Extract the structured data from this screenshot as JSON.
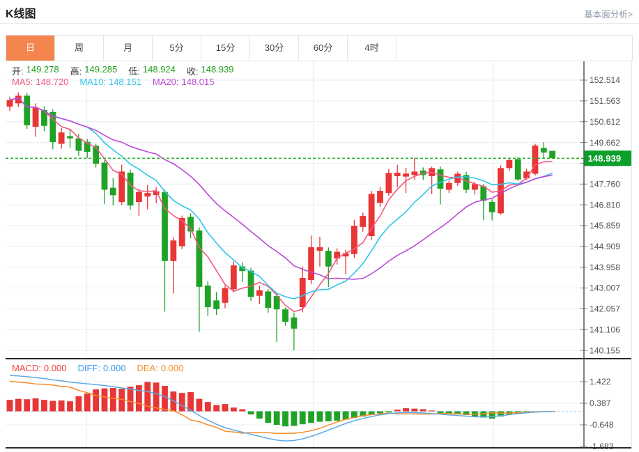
{
  "header": {
    "title": "K线图",
    "link_label": "基本面分析>"
  },
  "tabs": {
    "items": [
      "日",
      "周",
      "月",
      "5分",
      "15分",
      "30分",
      "60分",
      "4时"
    ],
    "selected_index": 0
  },
  "price_legend": {
    "ohlc": [
      {
        "label": "开:",
        "value": "149.278"
      },
      {
        "label": "高:",
        "value": "149.285"
      },
      {
        "label": "低:",
        "value": "148.924"
      },
      {
        "label": "收:",
        "value": "148.939"
      }
    ],
    "ma": [
      {
        "label": "MA5:",
        "value": "148.720"
      },
      {
        "label": "MA10:",
        "value": "148.151"
      },
      {
        "label": "MA20:",
        "value": "148.015"
      }
    ]
  },
  "macd_legend": [
    {
      "label": "MACD:",
      "value": "0.000"
    },
    {
      "label": "DIFF:",
      "value": "0.000"
    },
    {
      "label": "DEA:",
      "value": "0.000"
    }
  ],
  "colors": {
    "up": "#e83535",
    "down": "#20a226",
    "ma5": "#f2597f",
    "ma10": "#2fc5e8",
    "ma20": "#bb4ad4",
    "diff_line": "#5ea9e6",
    "dea_line": "#f78c2a",
    "macd_text": "#f04545",
    "diff_text": "#3e97f2",
    "dea_text": "#f78f2d",
    "ohlc_value": "#21a121",
    "tab_accent": "#f5854e",
    "price_badge": "#0aa02a",
    "price_line": "#28b428",
    "grid_h": "#e9eef5",
    "grid_v": "#dde7f0",
    "axis_line": "#555555",
    "axis_text": "#555555",
    "macd_zero_dash": "#aed6f2",
    "separator": "#2a2a2a"
  },
  "chart_data": {
    "type": "candlestick",
    "title": "K线图",
    "panels": [
      {
        "name": "price",
        "legend_current": {
          "open": 149.278,
          "high": 149.285,
          "low": 148.924,
          "close": 148.939
        },
        "ma_periods": [
          5,
          10,
          20
        ],
        "ma_current": {
          "ma5": 148.72,
          "ma10": 148.151,
          "ma20": 148.015
        },
        "current_price": 148.939,
        "y_ticks": [
          152.514,
          151.563,
          150.612,
          149.662,
          148.711,
          147.76,
          146.81,
          145.859,
          144.909,
          143.958,
          143.007,
          142.057,
          141.106,
          140.155
        ],
        "ohlc": [
          [
            151.3,
            151.75,
            151.1,
            151.6
          ],
          [
            151.45,
            151.95,
            151.28,
            151.8
          ],
          [
            151.8,
            151.92,
            150.28,
            150.45
          ],
          [
            150.38,
            151.45,
            149.92,
            151.25
          ],
          [
            151.15,
            151.32,
            150.18,
            150.42
          ],
          [
            151.05,
            151.18,
            149.35,
            149.68
          ],
          [
            149.6,
            150.32,
            149.38,
            150.12
          ],
          [
            149.95,
            150.28,
            149.42,
            149.85
          ],
          [
            149.85,
            150.05,
            149.05,
            149.28
          ],
          [
            149.69,
            149.82,
            148.95,
            149.23
          ],
          [
            149.51,
            149.6,
            148.52,
            148.69
          ],
          [
            148.74,
            148.85,
            146.84,
            147.5
          ],
          [
            147.59,
            148.03,
            146.78,
            147.25
          ],
          [
            146.94,
            148.64,
            146.8,
            148.33
          ],
          [
            148.28,
            148.42,
            146.58,
            146.78
          ],
          [
            146.94,
            147.55,
            146.31,
            147.4
          ],
          [
            147.19,
            147.72,
            146.6,
            147.35
          ],
          [
            147.26,
            147.62,
            146.88,
            147.43
          ],
          [
            147.4,
            147.5,
            141.93,
            144.24
          ],
          [
            144.24,
            145.32,
            142.75,
            145.18
          ],
          [
            144.92,
            146.32,
            144.78,
            146.21
          ],
          [
            146.26,
            146.42,
            145.28,
            145.59
          ],
          [
            145.64,
            145.78,
            141.0,
            143.06
          ],
          [
            143.12,
            143.32,
            141.72,
            142.13
          ],
          [
            142.44,
            142.82,
            141.78,
            142.04
          ],
          [
            142.33,
            143.12,
            142.08,
            143.0
          ],
          [
            142.95,
            144.22,
            142.8,
            144.04
          ],
          [
            143.99,
            144.18,
            143.28,
            143.78
          ],
          [
            143.8,
            143.92,
            142.42,
            142.6
          ],
          [
            142.65,
            143.12,
            142.28,
            142.9
          ],
          [
            142.85,
            142.96,
            141.88,
            142.1
          ],
          [
            142.64,
            142.75,
            140.53,
            142.03
          ],
          [
            142.03,
            142.12,
            141.28,
            141.46
          ],
          [
            141.66,
            141.88,
            140.155,
            141.15
          ],
          [
            142.13,
            143.99,
            141.9,
            143.47
          ],
          [
            143.37,
            145.4,
            143.18,
            144.87
          ],
          [
            144.71,
            145.35,
            143.99,
            144.87
          ],
          [
            144.71,
            144.86,
            143.06,
            143.99
          ],
          [
            144.35,
            144.82,
            144.08,
            144.66
          ],
          [
            144.45,
            144.74,
            143.63,
            144.6
          ],
          [
            144.56,
            146.12,
            144.38,
            145.85
          ],
          [
            145.8,
            146.45,
            145.58,
            146.3
          ],
          [
            145.38,
            147.45,
            145.2,
            147.31
          ],
          [
            146.9,
            147.62,
            146.72,
            147.45
          ],
          [
            147.35,
            148.45,
            147.22,
            148.27
          ],
          [
            148.12,
            148.64,
            147.61,
            148.28
          ],
          [
            148.1,
            148.5,
            147.35,
            148.24
          ],
          [
            148.17,
            148.95,
            147.95,
            148.33
          ],
          [
            148.38,
            148.52,
            147.95,
            148.17
          ],
          [
            148.12,
            148.56,
            147.3,
            148.49
          ],
          [
            148.43,
            148.56,
            146.83,
            147.55
          ],
          [
            147.5,
            147.92,
            147.35,
            147.81
          ],
          [
            147.81,
            148.32,
            147.68,
            148.23
          ],
          [
            148.17,
            148.32,
            147.35,
            147.5
          ],
          [
            147.5,
            147.86,
            147.28,
            147.76
          ],
          [
            147.66,
            147.76,
            146.11,
            146.99
          ],
          [
            146.94,
            147.06,
            146.1,
            146.47
          ],
          [
            146.42,
            148.62,
            146.35,
            148.49
          ],
          [
            148.49,
            148.96,
            148.35,
            148.86
          ],
          [
            148.9,
            148.98,
            147.9,
            147.97
          ],
          [
            148.02,
            148.46,
            147.94,
            148.33
          ],
          [
            148.23,
            149.6,
            148.15,
            149.52
          ],
          [
            149.41,
            149.67,
            148.95,
            149.2
          ],
          [
            149.278,
            149.285,
            148.924,
            148.939
          ]
        ]
      },
      {
        "name": "macd",
        "last_values": {
          "macd": 0.0,
          "diff": 0.0,
          "dea": 0.0
        },
        "y_ticks": [
          1.422,
          0.387,
          -0.648,
          -1.683
        ],
        "diff": [
          1.72,
          1.7,
          1.66,
          1.62,
          1.57,
          1.51,
          1.46,
          1.4,
          1.36,
          1.32,
          1.28,
          1.24,
          1.18,
          1.12,
          1.06,
          1.0,
          0.95,
          0.85,
          0.7,
          0.5,
          0.28,
          0.05,
          -0.2,
          -0.42,
          -0.62,
          -0.78,
          -0.9,
          -1.0,
          -1.1,
          -1.2,
          -1.3,
          -1.38,
          -1.42,
          -1.4,
          -1.32,
          -1.2,
          -1.06,
          -0.9,
          -0.74,
          -0.58,
          -0.45,
          -0.34,
          -0.25,
          -0.17,
          -0.11,
          -0.07,
          -0.05,
          -0.06,
          -0.08,
          -0.11,
          -0.14,
          -0.17,
          -0.2,
          -0.23,
          -0.26,
          -0.27,
          -0.25,
          -0.21,
          -0.16,
          -0.11,
          -0.07,
          -0.04,
          -0.02,
          0.0
        ],
        "hist": [
          0.55,
          0.6,
          0.58,
          0.62,
          0.55,
          0.5,
          0.52,
          0.48,
          0.72,
          0.85,
          1.05,
          1.1,
          1.12,
          1.08,
          1.18,
          1.25,
          1.41,
          1.38,
          1.22,
          0.95,
          0.88,
          0.92,
          0.6,
          0.45,
          0.3,
          0.35,
          0.18,
          0.1,
          -0.15,
          -0.35,
          -0.55,
          -0.65,
          -0.72,
          -0.7,
          -0.62,
          -0.55,
          -0.5,
          -0.48,
          -0.45,
          -0.4,
          -0.32,
          -0.25,
          -0.18,
          -0.1,
          -0.05,
          0.08,
          0.15,
          0.13,
          0.1,
          0.04,
          -0.08,
          -0.12,
          -0.15,
          -0.18,
          -0.25,
          -0.3,
          -0.35,
          -0.25,
          -0.15,
          -0.1,
          -0.06,
          -0.03,
          -0.01,
          0.0
        ]
      }
    ],
    "layout_hints": {
      "grid": true,
      "v_gridlines_x": [
        124,
        450,
        708
      ],
      "legend_position": "top-left-overlay"
    }
  }
}
